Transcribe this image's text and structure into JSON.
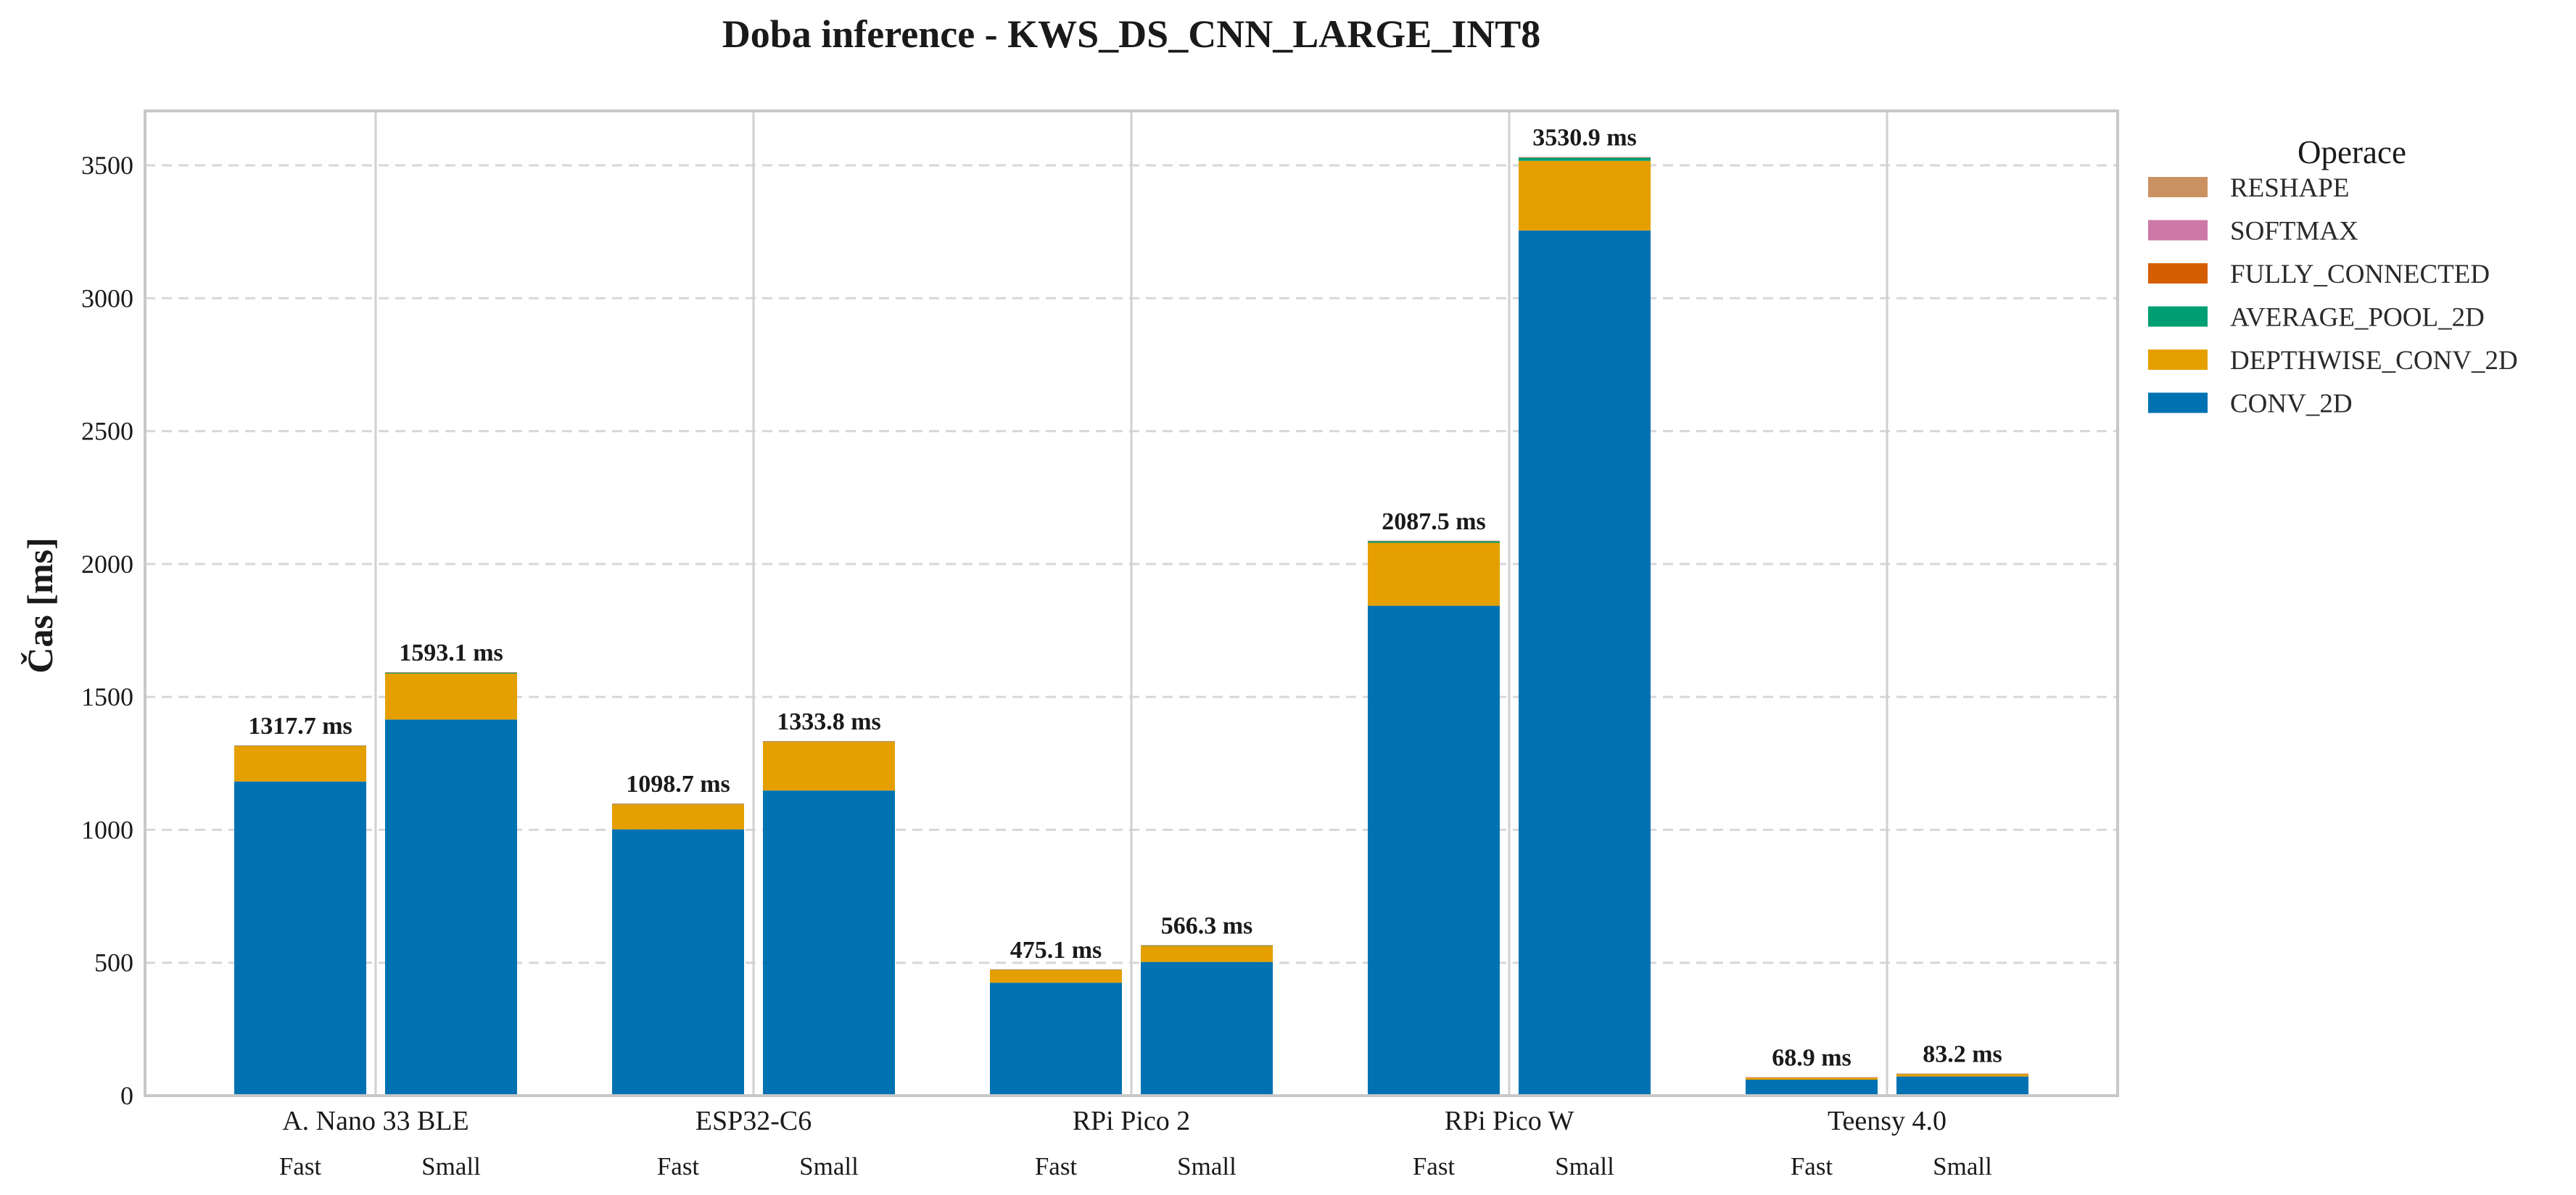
{
  "chart_data": {
    "type": "bar",
    "stacked": true,
    "title": "Doba inference - KWS_DS_CNN_LARGE_INT8",
    "ylabel": "Čas [ms]",
    "xlabel": "",
    "ylim": [
      0,
      3700
    ],
    "yticks": [
      0,
      500,
      1000,
      1500,
      2000,
      2500,
      3000,
      3500
    ],
    "grid": "y-dashed",
    "legend_title": "Operace",
    "legend_position": "right",
    "groups": [
      "A. Nano 33 BLE",
      "ESP32-C6",
      "RPi Pico 2",
      "RPi Pico W",
      "Teensy 4.0"
    ],
    "variants": [
      "Fast",
      "Small"
    ],
    "categories": [
      "A. Nano 33 BLE Fast",
      "A. Nano 33 BLE Small",
      "ESP32-C6 Fast",
      "ESP32-C6 Small",
      "RPi Pico 2 Fast",
      "RPi Pico 2 Small",
      "RPi Pico W Fast",
      "RPi Pico W Small",
      "Teensy 4.0 Fast",
      "Teensy 4.0 Small"
    ],
    "series": [
      {
        "name": "CONV_2D",
        "color": "#0072b2",
        "values": [
          1182,
          1415,
          1002,
          1148,
          425,
          503,
          1843,
          3255,
          60,
          72
        ]
      },
      {
        "name": "DEPTHWISE_CONV_2D",
        "color": "#e69f00",
        "values": [
          133,
          173,
          94,
          183,
          48,
          60,
          237,
          262,
          7,
          9
        ]
      },
      {
        "name": "AVERAGE_POOL_2D",
        "color": "#009e73",
        "values": [
          2.0,
          4.0,
          2.0,
          2.0,
          1.5,
          2.5,
          6.5,
          12.0,
          1.5,
          1.8
        ]
      },
      {
        "name": "FULLY_CONNECTED",
        "color": "#d55e00",
        "values": [
          0.5,
          0.8,
          0.5,
          0.6,
          0.4,
          0.6,
          0.7,
          1.4,
          0.3,
          0.3
        ]
      },
      {
        "name": "SOFTMAX",
        "color": "#cc79a7",
        "values": [
          0.1,
          0.2,
          0.1,
          0.1,
          0.1,
          0.1,
          0.2,
          0.3,
          0.05,
          0.05
        ]
      },
      {
        "name": "RESHAPE",
        "color": "#ca9161",
        "values": [
          0.1,
          0.1,
          0.1,
          0.1,
          0.1,
          0.1,
          0.1,
          0.2,
          0.05,
          0.05
        ]
      }
    ],
    "legend_order": [
      "RESHAPE",
      "SOFTMAX",
      "FULLY_CONNECTED",
      "AVERAGE_POOL_2D",
      "DEPTHWISE_CONV_2D",
      "CONV_2D"
    ],
    "totals": [
      1317.7,
      1593.1,
      1098.7,
      1333.8,
      475.1,
      566.3,
      2087.5,
      3530.9,
      68.9,
      83.2
    ],
    "total_labels": [
      "1317.7 ms",
      "1593.1 ms",
      "1098.7 ms",
      "1333.8 ms",
      "475.1 ms",
      "566.3 ms",
      "2087.5 ms",
      "3530.9 ms",
      "68.9 ms",
      "83.2 ms"
    ]
  }
}
